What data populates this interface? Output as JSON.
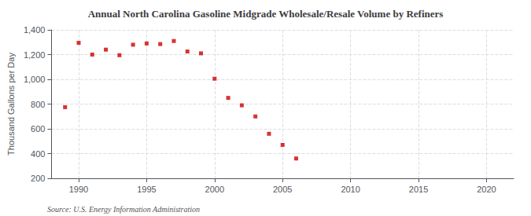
{
  "chart_data": {
    "type": "scatter",
    "title": "Annual North Carolina Gasoline Midgrade Wholesale/Resale Volume by Refiners",
    "ylabel": "Thousand Gallons per Day",
    "source": "Source: U.S. Energy Information Administration",
    "x": [
      1989,
      1990,
      1991,
      1992,
      1993,
      1994,
      1995,
      1996,
      1997,
      1998,
      1999,
      2000,
      2001,
      2002,
      2003,
      2004,
      2005,
      2006
    ],
    "values": [
      775,
      1295,
      1200,
      1240,
      1195,
      1280,
      1290,
      1285,
      1310,
      1225,
      1210,
      1005,
      850,
      790,
      700,
      560,
      470,
      360
    ],
    "color": "#cc0000",
    "marker": "square",
    "xlim": [
      1988,
      2022
    ],
    "ylim": [
      200,
      1400
    ],
    "xticks": [
      1990,
      1995,
      2000,
      2005,
      2010,
      2015,
      2020
    ],
    "yticks": [
      200,
      400,
      600,
      800,
      {
        "value": 1000,
        "label": "1,000"
      },
      {
        "value": 1200,
        "label": "1,200"
      },
      {
        "value": 1400,
        "label": "1,400"
      }
    ],
    "grid": true
  }
}
